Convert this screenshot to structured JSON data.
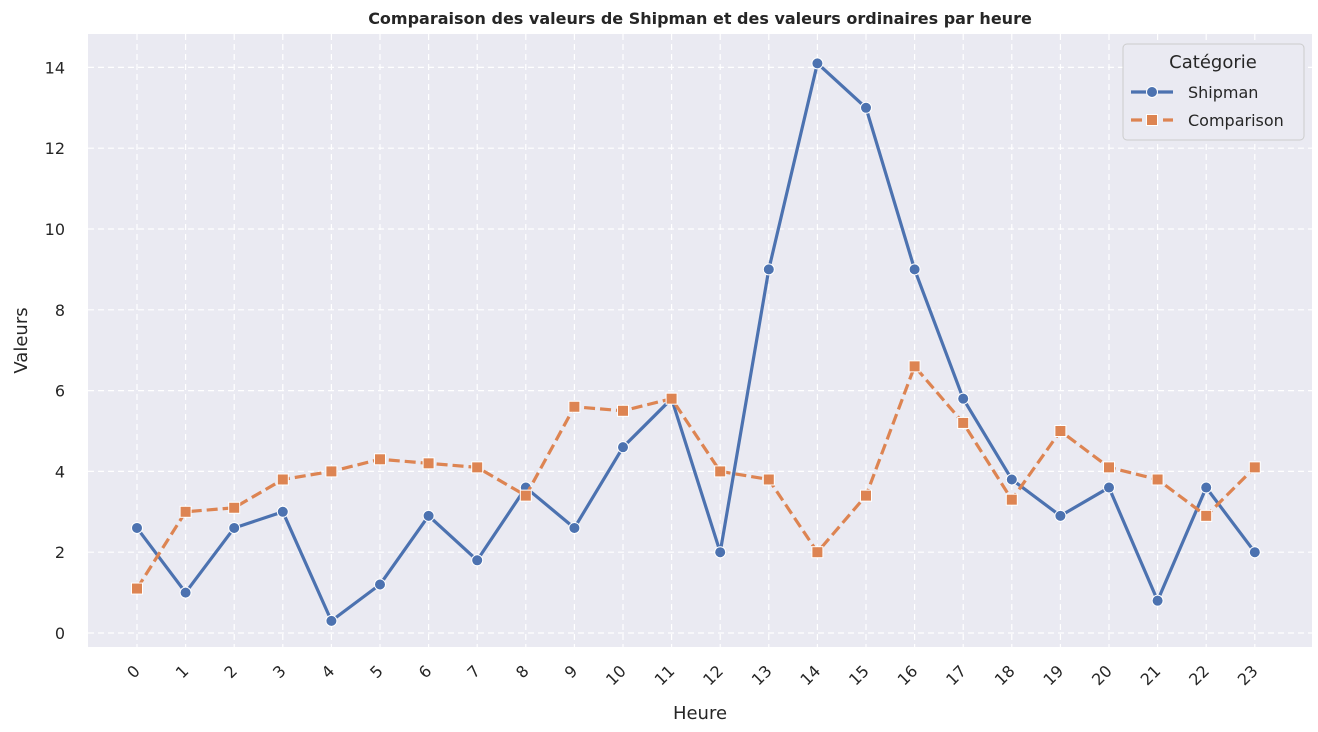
{
  "chart_data": {
    "type": "line",
    "title": "Comparaison des valeurs de Shipman et des valeurs ordinaires par heure",
    "xlabel": "Heure",
    "ylabel": "Valeurs",
    "categories": [
      "0",
      "1",
      "2",
      "3",
      "4",
      "5",
      "6",
      "7",
      "8",
      "9",
      "10",
      "11",
      "12",
      "13",
      "14",
      "15",
      "16",
      "17",
      "18",
      "19",
      "20",
      "21",
      "22",
      "23"
    ],
    "yticks": [
      "0",
      "2",
      "4",
      "6",
      "8",
      "10",
      "12",
      "14"
    ],
    "ylim": [
      -0.35,
      14.8
    ],
    "grid": true,
    "legend": {
      "title": "Catégorie",
      "placement": "top-right"
    },
    "series": [
      {
        "name": "Shipman",
        "color": "#4c72b0",
        "marker": "circle",
        "linestyle": "solid",
        "values": [
          2.6,
          1.0,
          2.6,
          3.0,
          0.3,
          1.2,
          2.9,
          1.8,
          3.6,
          2.6,
          4.6,
          5.8,
          2.0,
          9.0,
          14.1,
          13.0,
          9.0,
          5.8,
          3.8,
          2.9,
          3.6,
          0.8,
          3.6,
          2.0
        ]
      },
      {
        "name": "Comparison",
        "color": "#dd8452",
        "marker": "square",
        "linestyle": "dashed",
        "values": [
          1.1,
          3.0,
          3.1,
          3.8,
          4.0,
          4.3,
          4.2,
          4.1,
          3.4,
          5.6,
          5.5,
          5.8,
          4.0,
          3.8,
          2.0,
          3.4,
          6.6,
          5.2,
          3.3,
          5.0,
          4.1,
          3.8,
          2.9,
          4.1
        ]
      }
    ],
    "colors": {
      "plot_background": "#eaeaf2",
      "grid": "#ffffff",
      "text": "#262626"
    }
  }
}
